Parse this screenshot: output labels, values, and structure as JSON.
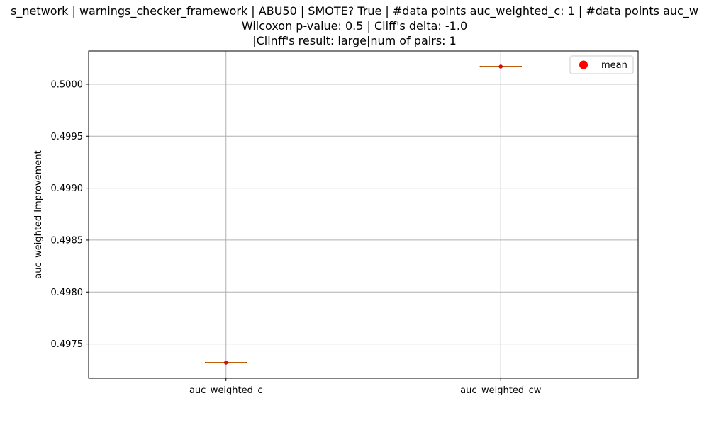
{
  "chart_data": {
    "type": "box",
    "title_lines": [
      "s_network | warnings_checker_framework | ABU50 | SMOTE? True | #data points auc_weighted_c: 1 | #data points auc_w",
      "Wilcoxon p-value: 0.5 | Cliff's delta: -1.0",
      "|Clinff's result: large|num of pairs: 1"
    ],
    "xlabel": "",
    "ylabel": "auc_weighted Improvement",
    "categories": [
      "auc_weighted_c",
      "auc_weighted_cw"
    ],
    "series": [
      {
        "values": [
          0.49732,
          0.50017
        ]
      }
    ],
    "mean_values": [
      0.49732,
      0.50017
    ],
    "ylim": [
      0.49717,
      0.50032
    ],
    "yticks": [
      0.4975,
      0.498,
      0.4985,
      0.499,
      0.4995,
      0.5
    ],
    "ytick_labels": [
      "0.4975",
      "0.4980",
      "0.4985",
      "0.4990",
      "0.4995",
      "0.5000"
    ],
    "grid": true,
    "legend": {
      "position": "top-right",
      "entries": [
        {
          "label": "mean",
          "color": "#ff0000"
        }
      ]
    },
    "colors": {
      "median": "#ff7f0e",
      "box": "#000000",
      "mean": "#ff0000",
      "grid": "#b0b0b0"
    }
  }
}
